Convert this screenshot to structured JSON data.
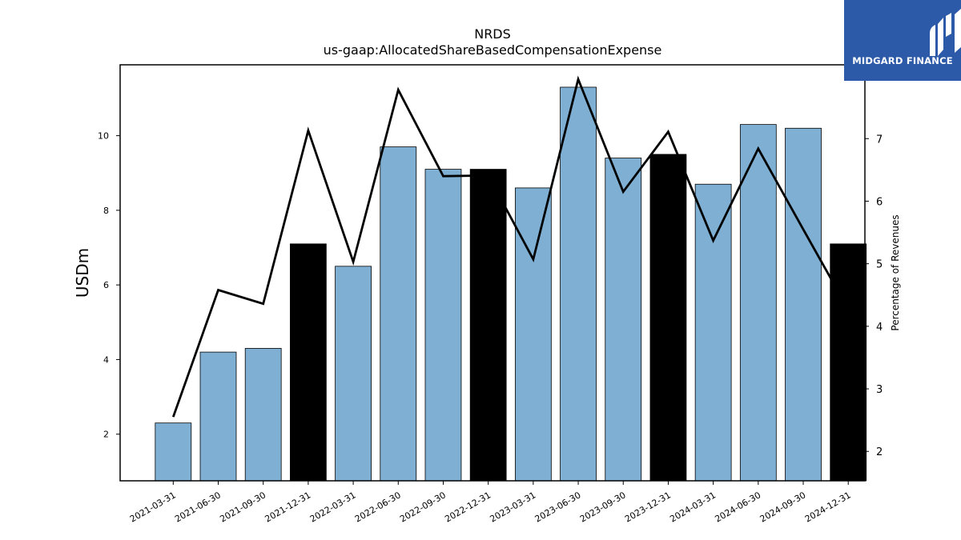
{
  "logo": {
    "text": "MIDGARD FINANCE",
    "icon": "midgard-logo-icon",
    "background": "#2d5aa8"
  },
  "chart_data": {
    "type": "bar",
    "title": "NRDS",
    "subtitle": "us-gaap:AllocatedShareBasedCompensationExpense",
    "xlabel": "",
    "ylabel": "USDm",
    "y2label": "Percentage of Revenues",
    "ylim": [
      0.75,
      11.9
    ],
    "y2lim": [
      1.53,
      8.18
    ],
    "yticks": [
      2,
      4,
      6,
      8,
      10
    ],
    "y2ticks": [
      2,
      3,
      4,
      5,
      6,
      7
    ],
    "categories": [
      "2021-03-31",
      "2021-06-30",
      "2021-09-30",
      "2021-12-31",
      "2022-03-31",
      "2022-06-30",
      "2022-09-30",
      "2022-12-31",
      "2023-03-31",
      "2023-06-30",
      "2023-09-30",
      "2023-12-31",
      "2024-03-31",
      "2024-06-30",
      "2024-09-30",
      "2024-12-31"
    ],
    "series": [
      {
        "type": "bar",
        "values": [
          2.3,
          4.2,
          4.3,
          7.1,
          6.5,
          9.7,
          9.1,
          9.1,
          8.6,
          11.3,
          9.4,
          9.5,
          8.7,
          10.3,
          10.2,
          7.1
        ],
        "colors": [
          "#7fb0d4",
          "#7fb0d4",
          "#7fb0d4",
          "#000000",
          "#7fb0d4",
          "#7fb0d4",
          "#7fb0d4",
          "#000000",
          "#7fb0d4",
          "#7fb0d4",
          "#7fb0d4",
          "#000000",
          "#7fb0d4",
          "#7fb0d4",
          "#7fb0d4",
          "#000000"
        ]
      },
      {
        "type": "line",
        "axis": "right",
        "color": "#000000",
        "values": [
          2.55,
          4.58,
          4.36,
          7.13,
          5.03,
          7.78,
          6.4,
          6.41,
          5.07,
          7.95,
          6.15,
          7.11,
          5.37,
          6.84,
          5.55,
          4.27
        ]
      }
    ],
    "grid": false
  }
}
